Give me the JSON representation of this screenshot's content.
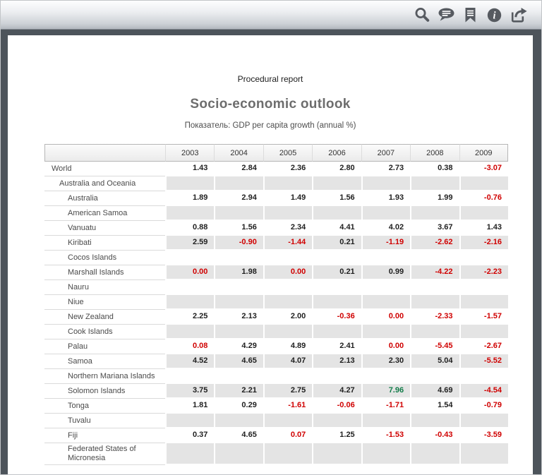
{
  "toolbar": {
    "buttons": [
      {
        "id": "search",
        "icon": "magnifier"
      },
      {
        "id": "comments",
        "icon": "speech-bubble"
      },
      {
        "id": "bookmark",
        "icon": "bookmark-ribbon"
      },
      {
        "id": "info",
        "icon": "info-circle"
      },
      {
        "id": "export",
        "icon": "share-arrow"
      }
    ]
  },
  "report": {
    "kicker": "Procedural report",
    "title": "Socio-economic outlook",
    "subtitle": "Показатель: GDP per capita growth (annual %)"
  },
  "table": {
    "years": [
      "2003",
      "2004",
      "2005",
      "2006",
      "2007",
      "2008",
      "2009"
    ],
    "rows": [
      {
        "name": "World",
        "indent": 0,
        "values": [
          "1.43",
          "2.84",
          "2.36",
          "2.80",
          "2.73",
          "0.38",
          "-3.07"
        ],
        "colors": [
          "k",
          "k",
          "k",
          "k",
          "k",
          "k",
          "r"
        ]
      },
      {
        "name": "Australia and Oceania",
        "indent": 1,
        "values": [],
        "colors": []
      },
      {
        "name": "Australia",
        "indent": 2,
        "values": [
          "1.89",
          "2.94",
          "1.49",
          "1.56",
          "1.93",
          "1.99",
          "-0.76"
        ],
        "colors": [
          "k",
          "k",
          "k",
          "k",
          "k",
          "k",
          "r"
        ]
      },
      {
        "name": "American Samoa",
        "indent": 2,
        "values": [],
        "colors": []
      },
      {
        "name": "Vanuatu",
        "indent": 2,
        "values": [
          "0.88",
          "1.56",
          "2.34",
          "4.41",
          "4.02",
          "3.67",
          "1.43"
        ],
        "colors": [
          "k",
          "k",
          "k",
          "k",
          "k",
          "k",
          "k"
        ]
      },
      {
        "name": "Kiribati",
        "indent": 2,
        "values": [
          "2.59",
          "-0.90",
          "-1.44",
          "0.21",
          "-1.19",
          "-2.62",
          "-2.16"
        ],
        "colors": [
          "k",
          "r",
          "r",
          "k",
          "r",
          "r",
          "r"
        ]
      },
      {
        "name": "Cocos Islands",
        "indent": 2,
        "values": [],
        "colors": []
      },
      {
        "name": "Marshall Islands",
        "indent": 2,
        "values": [
          "0.00",
          "1.98",
          "0.00",
          "0.21",
          "0.99",
          "-4.22",
          "-2.23"
        ],
        "colors": [
          "r",
          "k",
          "r",
          "k",
          "k",
          "r",
          "r"
        ]
      },
      {
        "name": "Nauru",
        "indent": 2,
        "values": [],
        "colors": []
      },
      {
        "name": "Niue",
        "indent": 2,
        "values": [],
        "colors": []
      },
      {
        "name": "New Zealand",
        "indent": 2,
        "values": [
          "2.25",
          "2.13",
          "2.00",
          "-0.36",
          "0.00",
          "-2.33",
          "-1.57"
        ],
        "colors": [
          "k",
          "k",
          "k",
          "r",
          "r",
          "r",
          "r"
        ]
      },
      {
        "name": "Cook Islands",
        "indent": 2,
        "values": [],
        "colors": []
      },
      {
        "name": "Palau",
        "indent": 2,
        "values": [
          "0.08",
          "4.29",
          "4.89",
          "2.41",
          "0.00",
          "-5.45",
          "-2.67"
        ],
        "colors": [
          "r",
          "k",
          "k",
          "k",
          "r",
          "r",
          "r"
        ]
      },
      {
        "name": "Samoa",
        "indent": 2,
        "values": [
          "4.52",
          "4.65",
          "4.07",
          "2.13",
          "2.30",
          "5.04",
          "-5.52"
        ],
        "colors": [
          "k",
          "k",
          "k",
          "k",
          "k",
          "k",
          "r"
        ]
      },
      {
        "name": "Northern Mariana Islands",
        "indent": 2,
        "values": [],
        "colors": []
      },
      {
        "name": "Solomon Islands",
        "indent": 2,
        "values": [
          "3.75",
          "2.21",
          "2.75",
          "4.27",
          "7.96",
          "4.69",
          "-4.54"
        ],
        "colors": [
          "k",
          "k",
          "k",
          "k",
          "g",
          "k",
          "r"
        ]
      },
      {
        "name": "Tonga",
        "indent": 2,
        "values": [
          "1.81",
          "0.29",
          "-1.61",
          "-0.06",
          "-1.71",
          "1.54",
          "-0.79"
        ],
        "colors": [
          "k",
          "k",
          "r",
          "r",
          "r",
          "k",
          "r"
        ]
      },
      {
        "name": "Tuvalu",
        "indent": 2,
        "values": [],
        "colors": []
      },
      {
        "name": "Fiji",
        "indent": 2,
        "values": [
          "0.37",
          "4.65",
          "0.07",
          "1.25",
          "-1.53",
          "-0.43",
          "-3.59"
        ],
        "colors": [
          "k",
          "k",
          "r",
          "k",
          "r",
          "r",
          "r"
        ]
      },
      {
        "name": "Federated States of Micronesia",
        "indent": 2,
        "values": [],
        "colors": []
      }
    ]
  },
  "colors": {
    "negative": "#d00000",
    "positive_highlight": "#127c49",
    "stripe": "#e4e4e4",
    "frame": "#4d545b",
    "icon": "#565a60"
  }
}
